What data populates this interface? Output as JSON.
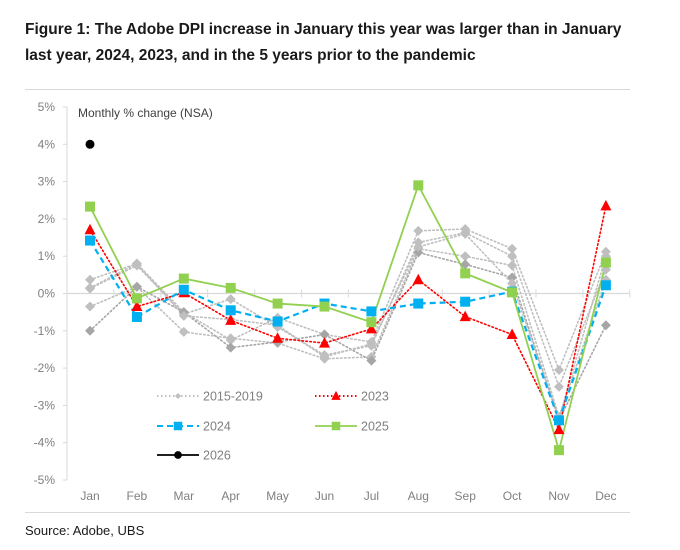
{
  "title": "Figure 1: The Adobe DPI increase in January this year was larger than in January last year, 2024, 2023, and in the 5 years prior to the pandemic",
  "source": "Source: Adobe, UBS",
  "chart_data": {
    "type": "line",
    "title": "Figure 1: The Adobe DPI increase in January this year was larger than in January last year, 2024, 2023, and in the 5 years prior to the pandemic",
    "annotation": "Monthly % change (NSA)",
    "xlabel": "",
    "ylabel": "",
    "ylim": [
      -5,
      5
    ],
    "yticks": [
      5,
      4,
      3,
      2,
      1,
      0,
      -1,
      -2,
      -3,
      -4,
      -5
    ],
    "ytick_labels": [
      "5%",
      "4%",
      "3%",
      "2%",
      "1%",
      "0%",
      "-1%",
      "-2%",
      "-3%",
      "-4%",
      "-5%"
    ],
    "categories": [
      "Jan",
      "Feb",
      "Mar",
      "Apr",
      "May",
      "Jun",
      "Jul",
      "Aug",
      "Sep",
      "Oct",
      "Nov",
      "Dec"
    ],
    "grid": false,
    "legend_position": "bottom-left",
    "series": [
      {
        "name": "2015-2019",
        "legend": true,
        "color": "#bfbfbf",
        "style": "dotted",
        "marker": "diamond",
        "values": [
          0.37,
          0.8,
          -0.5,
          -1.25,
          -0.65,
          -1.1,
          -1.3,
          1.68,
          1.73,
          1.2,
          -2.05,
          1.12
        ]
      },
      {
        "name": "2015-2019",
        "legend": false,
        "color": "#bfbfbf",
        "style": "dotted",
        "marker": "diamond",
        "values": [
          0.13,
          0.75,
          -0.55,
          -0.15,
          -0.9,
          -1.65,
          -1.4,
          1.37,
          1.63,
          1.0,
          -2.5,
          0.64
        ]
      },
      {
        "name": "2015-2019",
        "legend": false,
        "color": "#bfbfbf",
        "style": "dotted",
        "marker": "diamond",
        "values": [
          -0.35,
          0.18,
          -1.03,
          -1.2,
          -1.33,
          -1.75,
          -1.7,
          1.2,
          1.0,
          0.75,
          -3.3,
          0.37
        ]
      },
      {
        "name": "2015-2019",
        "legend": false,
        "color": "#a6a6a6",
        "style": "dotted",
        "marker": "diamond",
        "values": [
          -1.0,
          0.18,
          -0.5,
          -1.45,
          -1.3,
          -1.1,
          -1.8,
          1.1,
          0.78,
          0.43,
          -3.4,
          -0.85
        ]
      },
      {
        "name": "2015-2019",
        "legend": false,
        "color": "#bfbfbf",
        "style": "dotted",
        "marker": "diamond",
        "values": [
          0.15,
          0.8,
          -0.6,
          -0.7,
          -0.85,
          -1.7,
          -1.35,
          1.25,
          1.6,
          0.27,
          -3.35,
          1.0
        ]
      },
      {
        "name": "2023",
        "legend": true,
        "color": "#ff0000",
        "style": "dotted",
        "marker": "triangle",
        "values": [
          1.71,
          -0.35,
          0.02,
          -0.72,
          -1.2,
          -1.33,
          -0.95,
          0.37,
          -0.62,
          -1.1,
          -3.65,
          2.35
        ]
      },
      {
        "name": "2024",
        "legend": true,
        "color": "#00b0f0",
        "style": "dashed",
        "marker": "square",
        "values": [
          1.42,
          -0.63,
          0.1,
          -0.45,
          -0.75,
          -0.27,
          -0.48,
          -0.27,
          -0.22,
          0.05,
          -3.4,
          0.22
        ]
      },
      {
        "name": "2025",
        "legend": true,
        "color": "#92d050",
        "style": "solid",
        "marker": "square",
        "values": [
          2.33,
          -0.13,
          0.4,
          0.15,
          -0.27,
          -0.35,
          -0.77,
          2.9,
          0.54,
          0.03,
          -4.2,
          0.83
        ]
      },
      {
        "name": "2026",
        "legend": true,
        "color": "#000000",
        "style": "solid",
        "marker": "circle",
        "values": [
          4.0,
          null,
          null,
          null,
          null,
          null,
          null,
          null,
          null,
          null,
          null,
          null
        ]
      }
    ]
  }
}
